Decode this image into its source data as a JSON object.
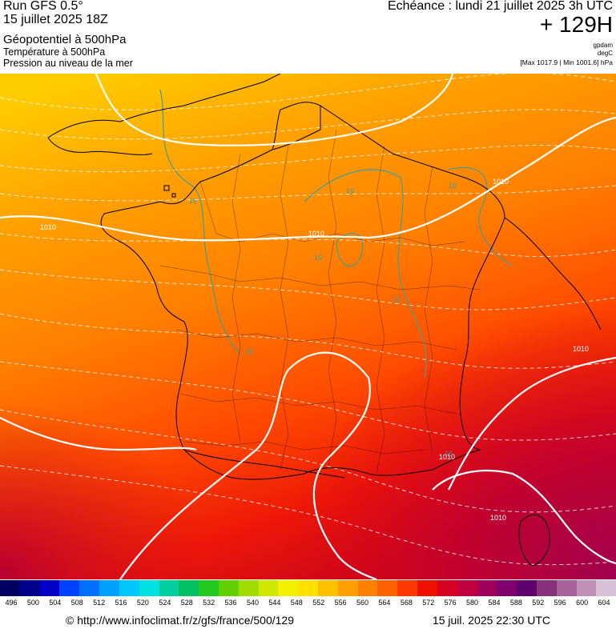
{
  "header": {
    "run_title": "Run GFS 0.5°",
    "run_date": "15 juillet 2025 18Z",
    "param_1": "Géopotentiel à 500hPa",
    "param_2": "Température à 500hPa",
    "param_3": "Pression au niveau de la mer",
    "echeance": "Echéance : lundi 21 juillet 2025 3h UTC",
    "horizon": "+ 129H",
    "unit_1": "gpdam",
    "unit_2": "degC",
    "unit_3": "[Max 1017.9 | Min 1001.6] hPa"
  },
  "map": {
    "isobar_labels": [
      "1010",
      "1010",
      "1010",
      "1010",
      "1010",
      "1010"
    ],
    "temp_labels": [
      "16",
      "16",
      "16",
      "16",
      "16",
      "16",
      "16"
    ],
    "colors": {
      "field_top": "#ffc600",
      "field_mid": "#ff8a00",
      "field_low": "#ff4a00",
      "field_bottom": "#e00010",
      "field_corner": "#aa0040",
      "coast": "#000000",
      "isobar": "#ffffff",
      "isotherm": "#3f9f9a"
    }
  },
  "colorbar": {
    "labels": [
      "496",
      "500",
      "504",
      "508",
      "512",
      "516",
      "520",
      "524",
      "528",
      "532",
      "536",
      "540",
      "544",
      "548",
      "552",
      "556",
      "560",
      "564",
      "568",
      "572",
      "576",
      "580",
      "584",
      "588",
      "592",
      "596",
      "600",
      "604"
    ],
    "colors": [
      "#000060",
      "#00008c",
      "#0000c8",
      "#0040ff",
      "#0070ff",
      "#00a0ff",
      "#00c8ff",
      "#00e0e0",
      "#00d0a0",
      "#00c060",
      "#20c820",
      "#60d000",
      "#a0dc00",
      "#d0e800",
      "#f0f000",
      "#ffe000",
      "#ffc000",
      "#ffa000",
      "#ff8000",
      "#ff6000",
      "#ff3800",
      "#f01000",
      "#d80020",
      "#c00040",
      "#a0005c",
      "#800070",
      "#60006c",
      "#88307c",
      "#a8609a",
      "#c090b8",
      "#d8c0d8"
    ]
  },
  "footer": {
    "url": "© http://www.infoclimat.fr/z/gfs/france/500/129",
    "timestamp": "15 juil. 2025 22:30 UTC"
  }
}
